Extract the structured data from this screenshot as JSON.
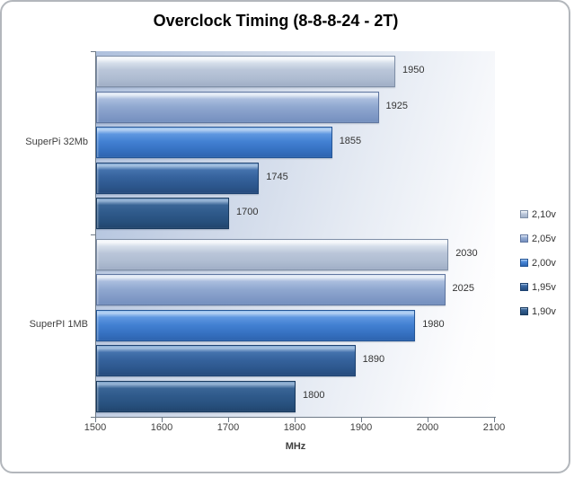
{
  "chart_data": {
    "type": "bar",
    "orientation": "horizontal",
    "title": "Overclock Timing (8-8-8-24 - 2T)",
    "xlabel": "MHz",
    "xlim": [
      1500,
      2100
    ],
    "xticks": [
      1500,
      1600,
      1700,
      1800,
      1900,
      2000,
      2100
    ],
    "categories": [
      "SuperPi 32Mb",
      "SuperPI 1MB"
    ],
    "series": [
      {
        "name": "2,10v",
        "values": [
          1950,
          2030
        ],
        "color": "#b2bfd4"
      },
      {
        "name": "2,05v",
        "values": [
          1925,
          2025
        ],
        "color": "#8ba3cc"
      },
      {
        "name": "2,00v",
        "values": [
          1855,
          1980
        ],
        "color": "#3a76c8"
      },
      {
        "name": "1,95v",
        "values": [
          1745,
          1890
        ],
        "color": "#305b94"
      },
      {
        "name": "1,90v",
        "values": [
          1700,
          1800
        ],
        "color": "#2a527e"
      }
    ],
    "legend_position": "right",
    "grid": false,
    "value_labels": true
  },
  "colors": {
    "frame_border": "#b3b7bc",
    "axis": "#6e7a87",
    "text": "#3f3f3f",
    "plot_bg_left": "#aec0dd",
    "plot_bg_right": "#ffffff"
  }
}
